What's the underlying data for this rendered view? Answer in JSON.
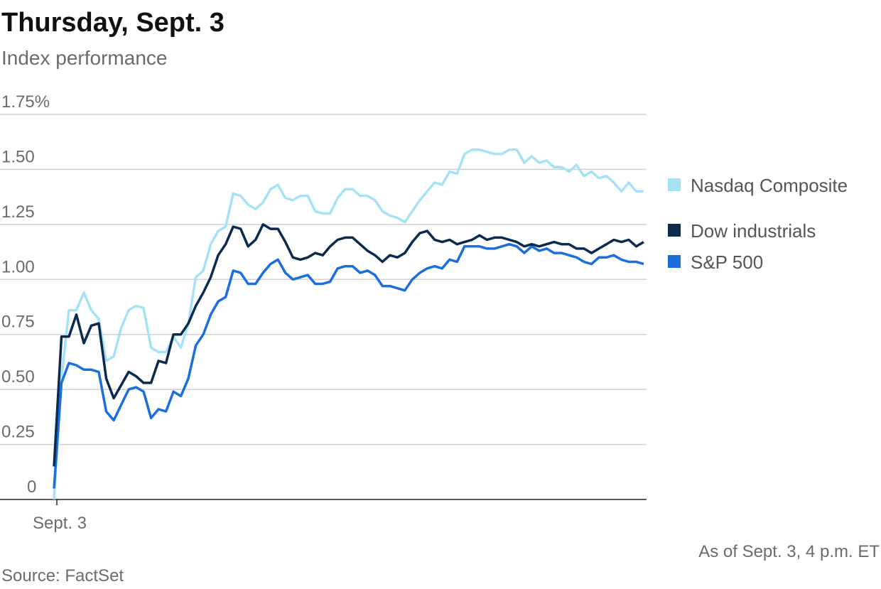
{
  "chart_data": {
    "type": "line",
    "title": "Thursday, Sept. 3",
    "subtitle": "Index performance",
    "note": "As of Sept. 3, 4 p.m. ET",
    "source": "Source: FactSet",
    "categories": [
      "Sept. 3",
      null,
      null,
      null,
      null,
      null,
      null,
      null,
      null,
      null,
      null,
      null,
      null,
      null,
      null,
      null,
      null,
      null,
      null,
      null,
      null,
      null,
      null,
      null,
      null,
      null,
      null,
      null,
      null,
      null,
      null,
      null,
      null,
      null,
      null,
      null,
      null,
      null,
      null,
      null,
      null,
      null,
      null,
      null,
      null,
      null,
      null,
      null,
      null,
      null,
      null,
      null,
      null,
      null,
      null,
      null,
      null,
      null,
      null,
      null,
      null,
      null,
      null,
      null,
      null,
      null,
      null,
      null,
      null,
      null,
      null,
      null,
      null,
      null,
      null,
      null,
      null,
      null,
      null,
      null
    ],
    "ylim": [
      0,
      1.75
    ],
    "yticks": [
      0,
      0.25,
      {
        "value": 0.5,
        "label": "0.50"
      },
      0.75,
      {
        "value": 1,
        "label": "1.00"
      },
      1.25,
      {
        "value": 1.5,
        "label": "1.50"
      },
      {
        "value": 1.75,
        "label": "1.75%"
      }
    ],
    "grid": true,
    "legend": "right",
    "series": [
      {
        "name": "Nasdaq Composite",
        "color": "#a6e2f6",
        "values": [
          0,
          0.55,
          0.86,
          0.86,
          0.94,
          0.86,
          0.82,
          0.63,
          0.65,
          0.78,
          0.86,
          0.88,
          0.87,
          0.69,
          0.67,
          0.67,
          0.74,
          0.69,
          0.8,
          1.01,
          1.04,
          1.16,
          1.22,
          1.24,
          1.39,
          1.38,
          1.34,
          1.32,
          1.35,
          1.41,
          1.43,
          1.37,
          1.36,
          1.38,
          1.38,
          1.31,
          1.3,
          1.3,
          1.37,
          1.41,
          1.41,
          1.38,
          1.38,
          1.36,
          1.31,
          1.29,
          1.28,
          1.26,
          1.31,
          1.36,
          1.4,
          1.44,
          1.43,
          1.49,
          1.48,
          1.57,
          1.59,
          1.59,
          1.58,
          1.57,
          1.57,
          1.59,
          1.59,
          1.53,
          1.56,
          1.53,
          1.54,
          1.51,
          1.51,
          1.49,
          1.52,
          1.47,
          1.49,
          1.46,
          1.47,
          1.44,
          1.4,
          1.44,
          1.4,
          1.4
        ]
      },
      {
        "name": "Dow industrials",
        "color": "#0b2a4f",
        "values": [
          0.15,
          0.74,
          0.74,
          0.84,
          0.71,
          0.79,
          0.8,
          0.55,
          0.46,
          0.52,
          0.58,
          0.56,
          0.53,
          0.53,
          0.63,
          0.62,
          0.75,
          0.75,
          0.8,
          0.88,
          0.94,
          1.01,
          1.11,
          1.16,
          1.24,
          1.23,
          1.15,
          1.18,
          1.25,
          1.23,
          1.23,
          1.17,
          1.1,
          1.09,
          1.1,
          1.12,
          1.11,
          1.15,
          1.18,
          1.19,
          1.19,
          1.16,
          1.13,
          1.11,
          1.08,
          1.11,
          1.1,
          1.12,
          1.17,
          1.21,
          1.22,
          1.18,
          1.17,
          1.18,
          1.16,
          1.17,
          1.18,
          1.2,
          1.18,
          1.19,
          1.19,
          1.18,
          1.17,
          1.15,
          1.16,
          1.15,
          1.16,
          1.17,
          1.16,
          1.16,
          1.14,
          1.14,
          1.12,
          1.14,
          1.16,
          1.18,
          1.17,
          1.18,
          1.15,
          1.17
        ]
      },
      {
        "name": "S&P 500",
        "color": "#1a6fdc",
        "values": [
          0.05,
          0.53,
          0.62,
          0.61,
          0.59,
          0.59,
          0.58,
          0.4,
          0.36,
          0.43,
          0.5,
          0.51,
          0.49,
          0.37,
          0.41,
          0.4,
          0.49,
          0.47,
          0.55,
          0.7,
          0.75,
          0.84,
          0.9,
          0.92,
          1.04,
          1.03,
          0.98,
          0.98,
          1.03,
          1.07,
          1.09,
          1.03,
          1.0,
          1.01,
          1.02,
          0.98,
          0.98,
          0.99,
          1.05,
          1.06,
          1.06,
          1.03,
          1.04,
          1.02,
          0.97,
          0.97,
          0.96,
          0.95,
          1.0,
          1.03,
          1.05,
          1.06,
          1.05,
          1.09,
          1.08,
          1.15,
          1.15,
          1.15,
          1.14,
          1.14,
          1.15,
          1.16,
          1.15,
          1.12,
          1.15,
          1.13,
          1.14,
          1.12,
          1.12,
          1.11,
          1.1,
          1.08,
          1.07,
          1.1,
          1.1,
          1.11,
          1.09,
          1.08,
          1.08,
          1.07
        ]
      }
    ]
  }
}
